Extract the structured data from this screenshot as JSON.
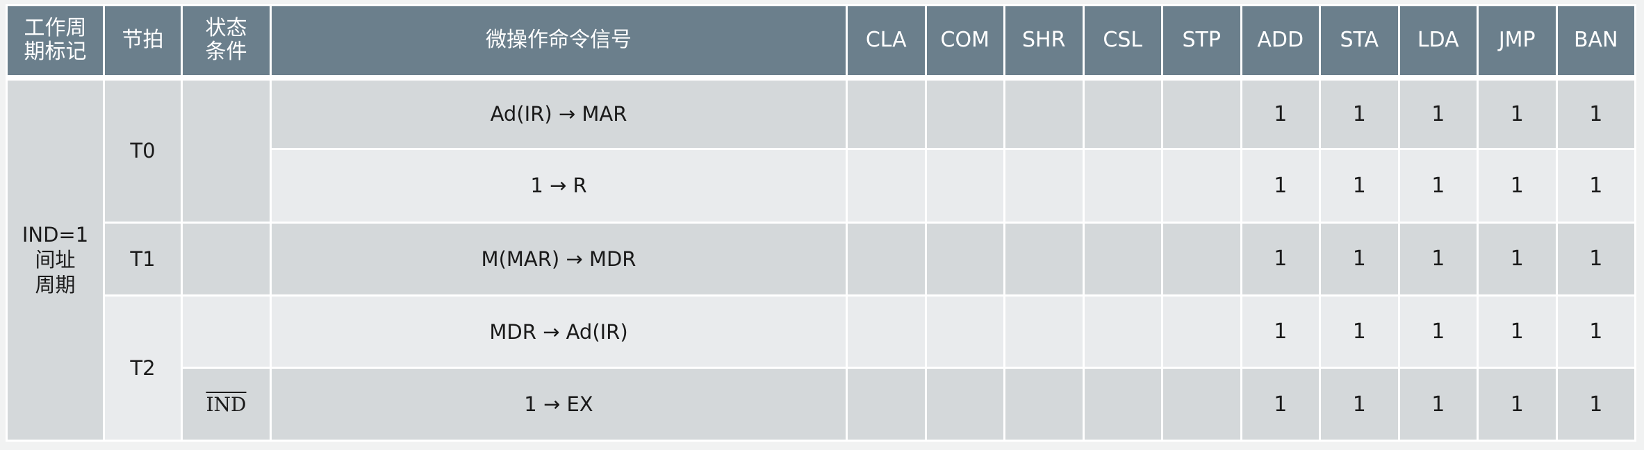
{
  "header": {
    "cycle_flag": "工作周\n期标记",
    "beat": "节拍",
    "condition": "状态\n条件",
    "micro_ops": "微操作命令信号",
    "instructions": [
      "CLA",
      "COM",
      "SHR",
      "CSL",
      "STP",
      "ADD",
      "STA",
      "LDA",
      "JMP",
      "BAN"
    ]
  },
  "cycle": {
    "label": "IND=1\n间址\n周期"
  },
  "beats": {
    "t0": "T0",
    "t1": "T1",
    "t2": "T2"
  },
  "conditions": {
    "ind_bar": "IND"
  },
  "rows": [
    {
      "op": "Ad(IR) → MAR",
      "values": [
        "",
        "",
        "",
        "",
        "",
        "1",
        "1",
        "1",
        "1",
        "1"
      ]
    },
    {
      "op": "1 → R",
      "values": [
        "",
        "",
        "",
        "",
        "",
        "1",
        "1",
        "1",
        "1",
        "1"
      ]
    },
    {
      "op": "M(MAR) → MDR",
      "values": [
        "",
        "",
        "",
        "",
        "",
        "1",
        "1",
        "1",
        "1",
        "1"
      ]
    },
    {
      "op": "MDR → Ad(IR)",
      "values": [
        "",
        "",
        "",
        "",
        "",
        "1",
        "1",
        "1",
        "1",
        "1"
      ]
    },
    {
      "op": "1 → EX",
      "values": [
        "",
        "",
        "",
        "",
        "",
        "1",
        "1",
        "1",
        "1",
        "1"
      ]
    }
  ]
}
